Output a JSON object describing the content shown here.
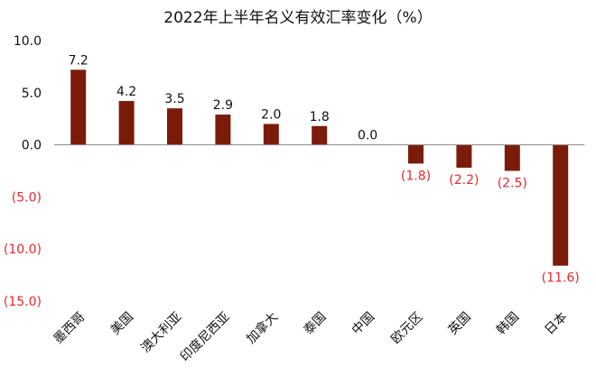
{
  "chart_data": {
    "type": "bar",
    "title": "2022年上半年名义有效汇率变化（%）",
    "xlabel": "",
    "ylabel": "",
    "categories": [
      "墨西哥",
      "美国",
      "澳大利亚",
      "印度尼西亚",
      "加拿大",
      "泰国",
      "中国",
      "欧元区",
      "英国",
      "韩国",
      "日本"
    ],
    "values": [
      7.2,
      4.2,
      3.5,
      2.9,
      2.0,
      1.8,
      0.0,
      -1.8,
      -2.2,
      -2.5,
      -11.6
    ],
    "data_labels": [
      "7.2",
      "4.2",
      "3.5",
      "2.9",
      "2.0",
      "1.8",
      "0.0",
      "(1.8)",
      "(2.2)",
      "(2.5)",
      "(11.6)"
    ],
    "ylim": [
      -15,
      10
    ],
    "yticks": [
      10,
      5,
      0,
      -5,
      -10,
      -15
    ],
    "ytick_labels": [
      "10.0",
      "5.0",
      "0.0",
      "(5.0)",
      "(10.0)",
      "(15.0)"
    ],
    "grid": false,
    "legend": "none",
    "colors": {
      "bar": "#7B1C0B",
      "positive_text": "#111111",
      "negative_text": "#E8292C",
      "axis": "#888888"
    }
  }
}
